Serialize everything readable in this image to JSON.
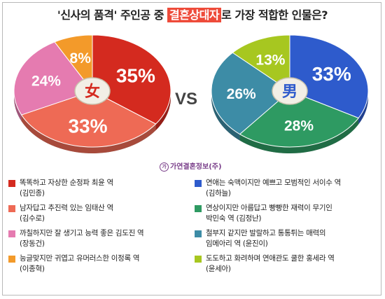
{
  "title": {
    "part1": "'신사의 품격' 주인공 중 ",
    "highlight": "결혼상대자",
    "part2": "로 가장 적합한 인물은?"
  },
  "vs_label": "VS",
  "source": "가연결혼정보(주)",
  "chart_data": [
    {
      "type": "pie",
      "center_label": "女",
      "slices": [
        {
          "value": 35,
          "label": "35%",
          "color": "#d42a1f"
        },
        {
          "value": 33,
          "label": "33%",
          "color": "#ee6a55"
        },
        {
          "value": 24,
          "label": "24%",
          "color": "#e57bb0"
        },
        {
          "value": 8,
          "label": "8%",
          "color": "#f39a2a"
        }
      ]
    },
    {
      "type": "pie",
      "center_label": "男",
      "slices": [
        {
          "value": 33,
          "label": "33%",
          "color": "#2e5bcc"
        },
        {
          "value": 28,
          "label": "28%",
          "color": "#2e9a62"
        },
        {
          "value": 26,
          "label": "26%",
          "color": "#3d8ca6"
        },
        {
          "value": 13,
          "label": "13%",
          "color": "#a7c720"
        }
      ]
    }
  ],
  "legend_left": [
    {
      "line1": "똑똑하고 자상한 순정파 최윤 역",
      "line2": "(김민종)",
      "color": "#d42a1f"
    },
    {
      "line1": "남자답고 추진력 있는 임태산 역",
      "line2": "(김수로)",
      "color": "#ee6a55"
    },
    {
      "line1": "까칠하지만 잘 생기고 능력 좋은 김도진 역",
      "line2": "(장동건)",
      "color": "#e57bb0"
    },
    {
      "line1": "능글맞지만 귀엽고 유머러스한 이정록 역",
      "line2": "(이종혁)",
      "color": "#f39a2a"
    }
  ],
  "legend_right": [
    {
      "line1": "연애는 숙맥이지만 예쁘고 모범적인 서이수 역",
      "line2": "(김하늘)",
      "color": "#2e5bcc"
    },
    {
      "line1": "연상이지만 아름답고 빵빵한 재력이 무기인",
      "line2": "박민숙 역 (김정난)",
      "color": "#2e9a62"
    },
    {
      "line1": "철부지 같지만 발랄하고 통통튀는 매력의",
      "line2": "임메아리 역 (윤진이)",
      "color": "#3d8ca6"
    },
    {
      "line1": "도도하고 화려하며 연애관도 쿨한 홍세라 역",
      "line2": "(윤세아)",
      "color": "#a7c720"
    }
  ]
}
